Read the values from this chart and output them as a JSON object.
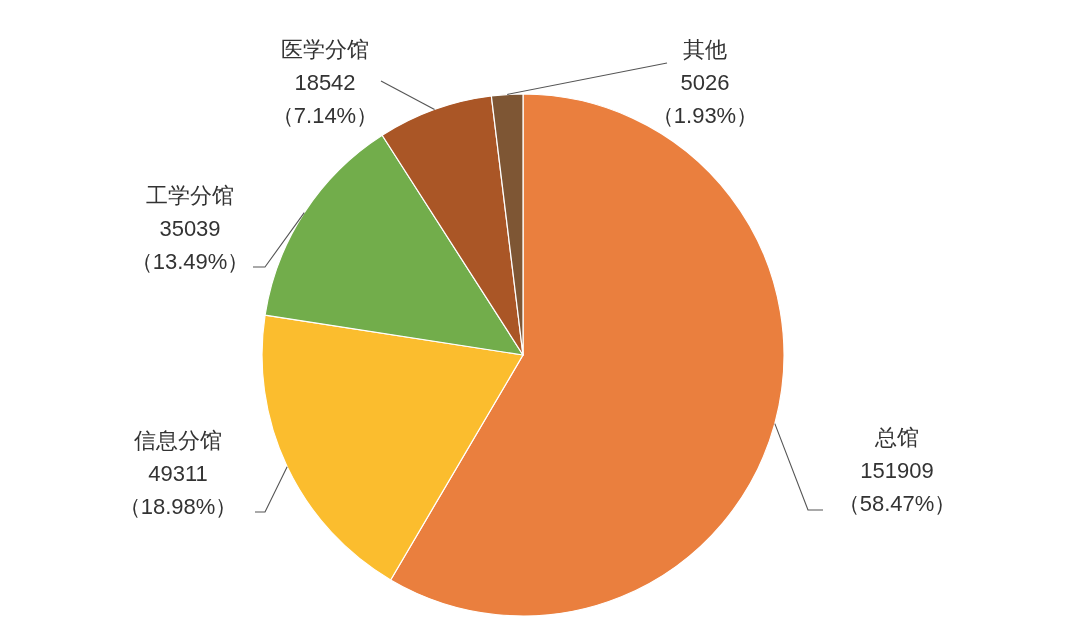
{
  "chart_data": {
    "type": "pie",
    "categories": [
      "总馆",
      "信息分馆",
      "工学分馆",
      "医学分馆",
      "其他"
    ],
    "values": [
      151909,
      49311,
      35039,
      18542,
      5026
    ],
    "colors": [
      "#ea7f3e",
      "#fbbd2e",
      "#72ad4b",
      "#aa5626",
      "#7e5634"
    ],
    "value_labels": [
      "151909\n（58.47%）",
      "49311\n（18.98%）",
      "35039\n（13.49%）",
      "18542\n（7.14%）",
      "5026\n（1.93%）"
    ]
  }
}
